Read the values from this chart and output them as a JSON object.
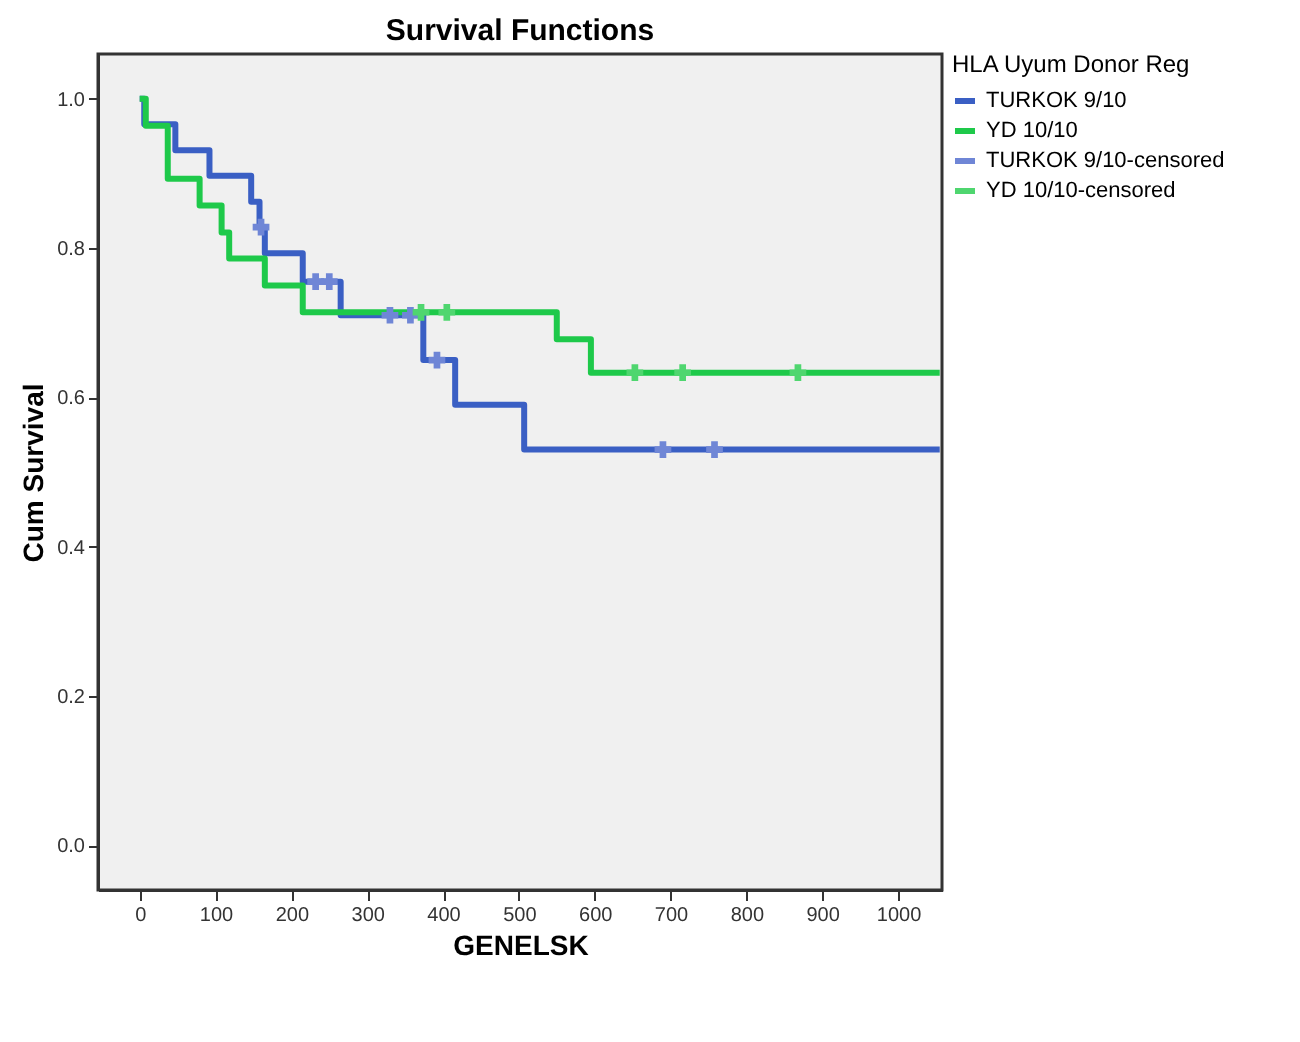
{
  "chart_data": {
    "type": "step",
    "title": "Survival Functions",
    "xlabel": "GENELSK",
    "ylabel": "Cum Survival",
    "legend_title": "HLA Uyum Donor Reg",
    "legend": "top right",
    "grid": false,
    "line_style": "solid",
    "xlim": [
      -55,
      1058
    ],
    "xticks": [
      0,
      100,
      200,
      300,
      400,
      500,
      600,
      700,
      800,
      900,
      1000
    ],
    "ylim": [
      -0.06,
      1.06
    ],
    "yticks": [
      {
        "value": 0,
        "label": "0.0"
      },
      {
        "value": 0.2,
        "label": "0.2"
      },
      {
        "value": 0.4,
        "label": "0.4"
      },
      {
        "value": 0.6,
        "label": "0.6"
      },
      {
        "value": 0.8,
        "label": "0.8"
      },
      {
        "value": 1,
        "label": "1.0"
      }
    ],
    "series": [
      {
        "name": "TURKOK 9/10",
        "color": "#3a5fc4",
        "x": [
          0,
          6,
          47,
          92,
          147,
          158,
          165,
          215,
          265,
          374,
          416,
          507,
          1055
        ],
        "values": [
          1,
          0.966,
          0.931,
          0.897,
          0.862,
          0.828,
          0.793,
          0.755,
          0.71,
          0.65,
          0.59,
          0.53,
          0.53
        ]
      },
      {
        "name": "YD 10/10",
        "color": "#1ec94a",
        "x": [
          0,
          8,
          37,
          79,
          108,
          118,
          165,
          215,
          550,
          595,
          1055
        ],
        "values": [
          1,
          0.964,
          0.893,
          0.857,
          0.821,
          0.786,
          0.75,
          0.714,
          0.678,
          0.633,
          0.633
        ]
      },
      {
        "name": "TURKOK 9/10-censored",
        "color": "#6f86d6",
        "type": "scatter",
        "marker": "cross",
        "x": [
          160,
          232,
          250,
          330,
          357,
          392,
          690,
          758
        ],
        "values": [
          0.828,
          0.755,
          0.755,
          0.71,
          0.71,
          0.65,
          0.53,
          0.53
        ]
      },
      {
        "name": "YD 10/10-censored",
        "color": "#4fd66f",
        "type": "scatter",
        "marker": "cross",
        "x": [
          371,
          405,
          653,
          716,
          868
        ],
        "values": [
          0.714,
          0.714,
          0.633,
          0.633,
          0.633
        ]
      }
    ]
  }
}
